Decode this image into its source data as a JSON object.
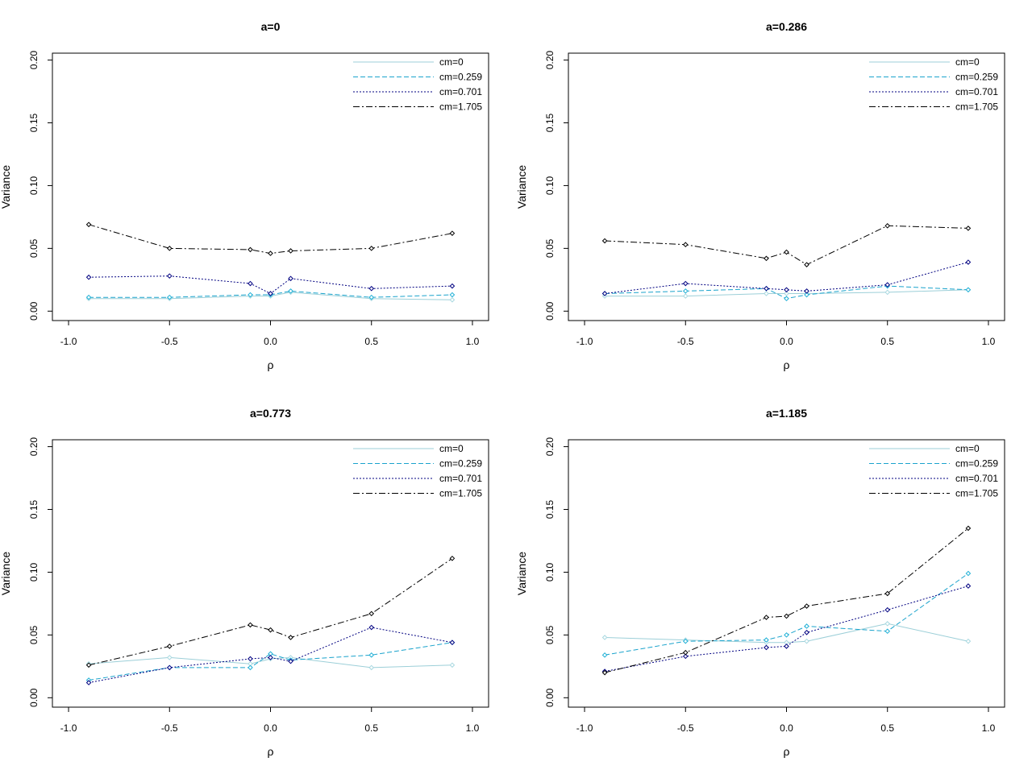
{
  "chart_data": [
    {
      "type": "line",
      "title": "a=0",
      "xlabel": "ρ",
      "ylabel": "Variance",
      "xlim": [
        -1.0,
        1.0
      ],
      "ylim": [
        0.0,
        0.2
      ],
      "xticks": [
        "-1.0",
        "-0.5",
        "0.0",
        "0.5",
        "1.0"
      ],
      "yticks": [
        "0.00",
        "0.05",
        "0.10",
        "0.15",
        "0.20"
      ],
      "grid": false,
      "legend": "top-right",
      "x": [
        -0.9,
        -0.5,
        -0.1,
        0.0,
        0.1,
        0.5,
        0.9
      ],
      "series": [
        {
          "name": "cm=0",
          "values": [
            0.01,
            0.01,
            0.012,
            0.012,
            0.015,
            0.01,
            0.009
          ]
        },
        {
          "name": "cm=0.259",
          "values": [
            0.011,
            0.011,
            0.013,
            0.013,
            0.016,
            0.011,
            0.013
          ]
        },
        {
          "name": "cm=0.701",
          "values": [
            0.027,
            0.028,
            0.022,
            0.014,
            0.026,
            0.018,
            0.02
          ]
        },
        {
          "name": "cm=1.705",
          "values": [
            0.069,
            0.05,
            0.049,
            0.046,
            0.048,
            0.05,
            0.062
          ]
        }
      ]
    },
    {
      "type": "line",
      "title": "a=0.286",
      "xlabel": "ρ",
      "ylabel": "Variance",
      "xlim": [
        -1.0,
        1.0
      ],
      "ylim": [
        0.0,
        0.2
      ],
      "xticks": [
        "-1.0",
        "-0.5",
        "0.0",
        "0.5",
        "1.0"
      ],
      "yticks": [
        "0.00",
        "0.05",
        "0.10",
        "0.15",
        "0.20"
      ],
      "grid": false,
      "legend": "top-right",
      "x": [
        -0.9,
        -0.5,
        -0.1,
        0.0,
        0.1,
        0.5,
        0.9
      ],
      "series": [
        {
          "name": "cm=0",
          "values": [
            0.012,
            0.012,
            0.014,
            0.014,
            0.014,
            0.015,
            0.017
          ]
        },
        {
          "name": "cm=0.259",
          "values": [
            0.014,
            0.016,
            0.018,
            0.01,
            0.013,
            0.02,
            0.017
          ]
        },
        {
          "name": "cm=0.701",
          "values": [
            0.014,
            0.022,
            0.018,
            0.017,
            0.016,
            0.021,
            0.039
          ]
        },
        {
          "name": "cm=1.705",
          "values": [
            0.056,
            0.053,
            0.042,
            0.047,
            0.037,
            0.068,
            0.066
          ]
        }
      ]
    },
    {
      "type": "line",
      "title": "a=0.773",
      "xlabel": "ρ",
      "ylabel": "Variance",
      "xlim": [
        -1.0,
        1.0
      ],
      "ylim": [
        0.0,
        0.2
      ],
      "xticks": [
        "-1.0",
        "-0.5",
        "0.0",
        "0.5",
        "1.0"
      ],
      "yticks": [
        "0.00",
        "0.05",
        "0.10",
        "0.15",
        "0.20"
      ],
      "grid": false,
      "legend": "top-right",
      "x": [
        -0.9,
        -0.5,
        -0.1,
        0.0,
        0.1,
        0.5,
        0.9
      ],
      "series": [
        {
          "name": "cm=0",
          "values": [
            0.027,
            0.032,
            0.027,
            0.031,
            0.032,
            0.024,
            0.026
          ]
        },
        {
          "name": "cm=0.259",
          "values": [
            0.014,
            0.024,
            0.024,
            0.035,
            0.03,
            0.034,
            0.044
          ]
        },
        {
          "name": "cm=0.701",
          "values": [
            0.012,
            0.024,
            0.031,
            0.032,
            0.029,
            0.056,
            0.044
          ]
        },
        {
          "name": "cm=1.705",
          "values": [
            0.026,
            0.041,
            0.058,
            0.054,
            0.048,
            0.067,
            0.111
          ]
        }
      ]
    },
    {
      "type": "line",
      "title": "a=1.185",
      "xlabel": "ρ",
      "ylabel": "Variance",
      "xlim": [
        -1.0,
        1.0
      ],
      "ylim": [
        0.0,
        0.2
      ],
      "xticks": [
        "-1.0",
        "-0.5",
        "0.0",
        "0.5",
        "1.0"
      ],
      "yticks": [
        "0.00",
        "0.05",
        "0.10",
        "0.15",
        "0.20"
      ],
      "grid": false,
      "legend": "top-right",
      "x": [
        -0.9,
        -0.5,
        -0.1,
        0.0,
        0.1,
        0.5,
        0.9
      ],
      "series": [
        {
          "name": "cm=0",
          "values": [
            0.048,
            0.046,
            0.044,
            0.044,
            0.045,
            0.059,
            0.045
          ]
        },
        {
          "name": "cm=0.259",
          "values": [
            0.034,
            0.045,
            0.046,
            0.05,
            0.057,
            0.053,
            0.099
          ]
        },
        {
          "name": "cm=0.701",
          "values": [
            0.021,
            0.033,
            0.04,
            0.041,
            0.052,
            0.07,
            0.089
          ]
        },
        {
          "name": "cm=1.705",
          "values": [
            0.02,
            0.036,
            0.064,
            0.065,
            0.073,
            0.083,
            0.135
          ]
        }
      ]
    }
  ],
  "series_styles": [
    {
      "color": "#9ccfd8",
      "dash": "none",
      "marker": "#a8d8e0"
    },
    {
      "color": "#1aa3cc",
      "dash": "dashed",
      "marker": "#1fb0d6"
    },
    {
      "color": "#000080",
      "dash": "dotted",
      "marker": "#000080"
    },
    {
      "color": "#000000",
      "dash": "dashdot",
      "marker": "#000000"
    }
  ]
}
